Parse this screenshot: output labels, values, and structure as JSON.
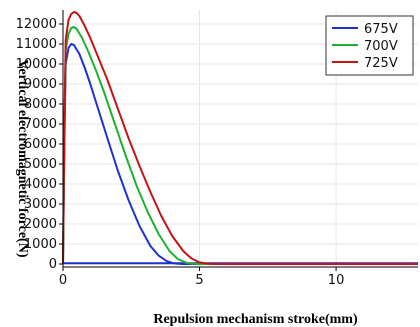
{
  "chart_data": {
    "type": "line",
    "xlabel": "Repulsion mechanism stroke(mm)",
    "ylabel": "Vertical electromagnetic force(N)",
    "xlim": [
      0,
      13
    ],
    "ylim": [
      -150,
      12700
    ],
    "xticks": [
      0,
      5,
      10
    ],
    "yticks": [
      0,
      1000,
      2000,
      3000,
      4000,
      5000,
      6000,
      7000,
      8000,
      9000,
      10000,
      11000,
      12000
    ],
    "grid": true,
    "legend_position": "top-right",
    "series": [
      {
        "name": "675V",
        "color": "#1f2fd6",
        "x": [
          0,
          0.05,
          0.1,
          0.2,
          0.3,
          0.4,
          0.6,
          0.8,
          1.0,
          1.3,
          1.6,
          2.0,
          2.4,
          2.8,
          3.2,
          3.5,
          3.8,
          4.0,
          4.2,
          4.4,
          13
        ],
        "y": [
          0,
          6000,
          10000,
          10800,
          11000,
          10950,
          10500,
          9800,
          9000,
          7700,
          6400,
          4700,
          3200,
          1900,
          900,
          420,
          140,
          50,
          10,
          0,
          0
        ]
      },
      {
        "name": "700V",
        "color": "#1fb030",
        "x": [
          0,
          0.05,
          0.1,
          0.2,
          0.3,
          0.4,
          0.5,
          0.7,
          0.9,
          1.2,
          1.5,
          1.9,
          2.3,
          2.7,
          3.1,
          3.5,
          3.9,
          4.2,
          4.5,
          4.7,
          4.9,
          13
        ],
        "y": [
          0,
          6500,
          10700,
          11500,
          11800,
          11850,
          11750,
          11300,
          10700,
          9700,
          8600,
          7000,
          5400,
          3900,
          2600,
          1500,
          650,
          250,
          70,
          20,
          0,
          0
        ]
      },
      {
        "name": "725V",
        "color": "#c41414",
        "x": [
          0,
          0.05,
          0.1,
          0.2,
          0.3,
          0.4,
          0.5,
          0.6,
          0.8,
          1.0,
          1.3,
          1.6,
          2.0,
          2.4,
          2.8,
          3.2,
          3.6,
          4.0,
          4.4,
          4.7,
          5.0,
          5.3,
          5.6,
          13
        ],
        "y": [
          0,
          7000,
          11200,
          12200,
          12500,
          12600,
          12550,
          12400,
          11900,
          11300,
          10300,
          9300,
          7800,
          6300,
          4900,
          3600,
          2400,
          1400,
          650,
          280,
          80,
          20,
          0,
          0
        ]
      }
    ],
    "baseline": {
      "color": "#1f2fd6",
      "x": [
        0,
        13
      ],
      "y": [
        40,
        40
      ]
    }
  }
}
